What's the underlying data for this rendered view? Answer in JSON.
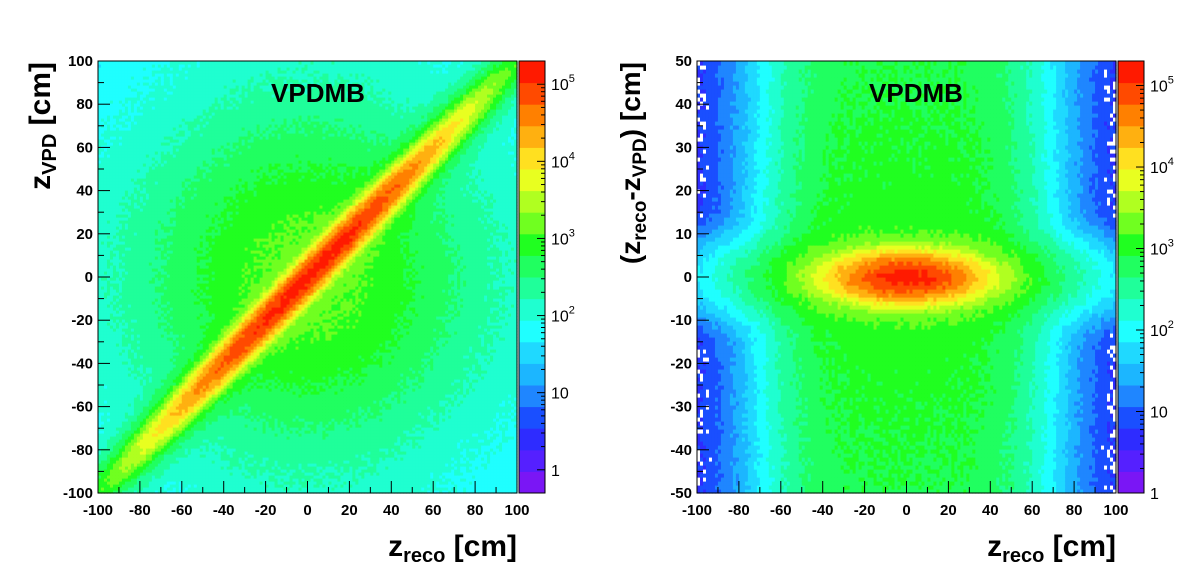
{
  "palette": [
    "#7a16f5",
    "#5520ff",
    "#2e2cff",
    "#1a4fff",
    "#1f86ff",
    "#1cb6ff",
    "#1fd9ff",
    "#1fffff",
    "#1fffd0",
    "#1fff9a",
    "#20ff60",
    "#20ff20",
    "#70ff20",
    "#b0ff20",
    "#e8ff20",
    "#ffe020",
    "#ffb010",
    "#ff8000",
    "#ff4a00",
    "#ff1a00"
  ],
  "chart_data": [
    {
      "type": "heatmap",
      "title": "VPDMB",
      "xlabel": "z",
      "xlabel_sub": "reco",
      "xlabel_unit": " [cm]",
      "ylabel": "z",
      "ylabel_sub": "VPD",
      "ylabel_unit": " [cm]",
      "xlim": [
        -100,
        100
      ],
      "ylim": [
        -100,
        100
      ],
      "xticks": [
        "-100",
        "-80",
        "-60",
        "-40",
        "-20",
        "0",
        "20",
        "40",
        "60",
        "80",
        "100"
      ],
      "yticks": [
        "-100",
        "-80",
        "-60",
        "-40",
        "-20",
        "0",
        "20",
        "40",
        "60",
        "80",
        "100"
      ],
      "z_log": true,
      "zlim": [
        0.5,
        200000
      ],
      "zticks": [
        "1",
        "10",
        "10",
        "10",
        "10",
        "10"
      ],
      "zticks_exp": [
        "",
        "",
        "2",
        "3",
        "4",
        "5"
      ],
      "zticks_values": [
        1,
        10,
        100,
        1000,
        10000,
        100000
      ],
      "structure": "narrow high-density band along z_VPD = z_reco peaking near 1e5, broad ~1e3 core, sparse corners"
    },
    {
      "type": "heatmap",
      "title": "VPDMB",
      "xlabel": "z",
      "xlabel_sub": "reco",
      "xlabel_unit": " [cm]",
      "ylabel": "(z",
      "ylabel_sub": "reco",
      "ylabel_mid": "-z",
      "ylabel_sub2": "VPD",
      "ylabel_unit": ") [cm]",
      "xlim": [
        -100,
        100
      ],
      "ylim": [
        -50,
        50
      ],
      "xticks": [
        "-100",
        "-80",
        "-60",
        "-40",
        "-20",
        "0",
        "20",
        "40",
        "60",
        "80",
        "100"
      ],
      "yticks": [
        "-50",
        "-40",
        "-30",
        "-20",
        "-10",
        "0",
        "10",
        "20",
        "30",
        "40",
        "50"
      ],
      "z_log": true,
      "zlim": [
        1,
        200000
      ],
      "zticks": [
        "1",
        "10",
        "10",
        "10",
        "10",
        "10"
      ],
      "zticks_exp": [
        "",
        "",
        "2",
        "3",
        "4",
        "5"
      ],
      "zticks_values": [
        1,
        10,
        100,
        1000,
        10000,
        100000
      ],
      "structure": "horizontal high-density core at difference ~0 for |z_reco|<40 peaking near 1e5, broad green body, sparse outer edges"
    }
  ]
}
